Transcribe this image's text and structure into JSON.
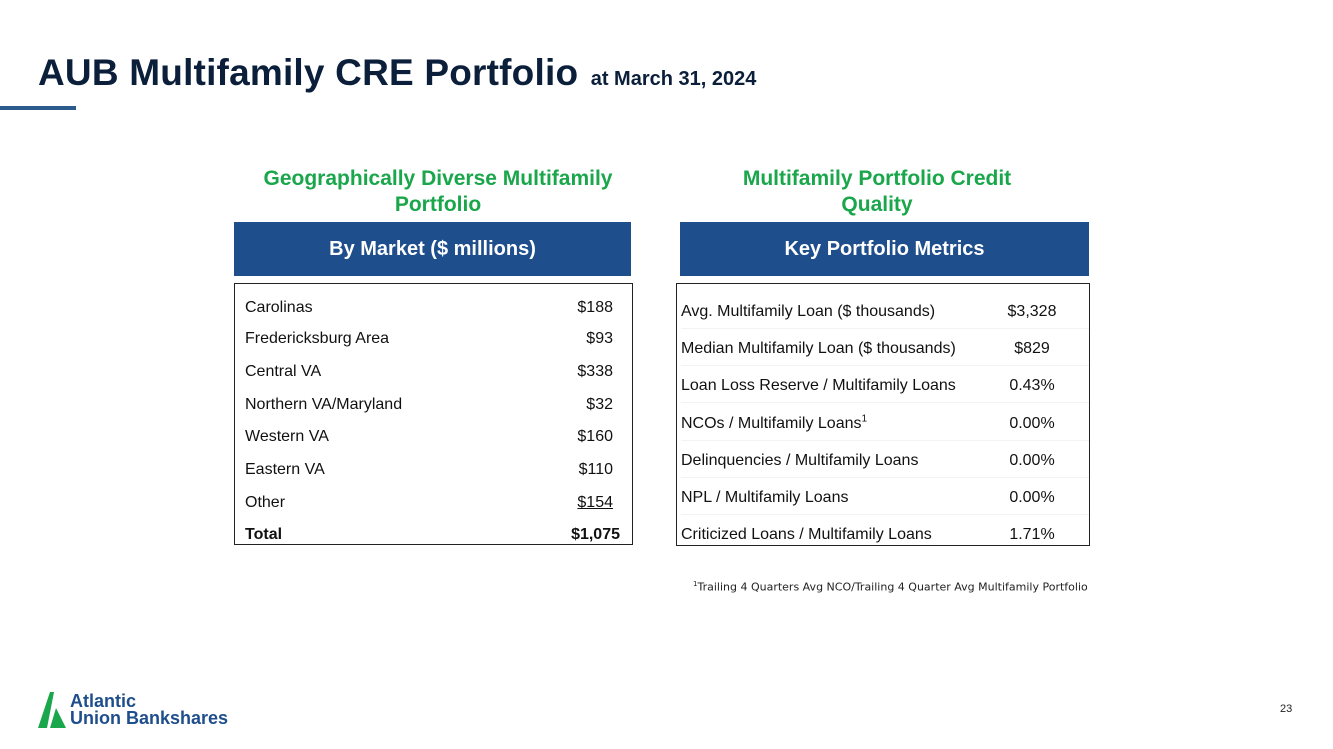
{
  "slide": {
    "title": "AUB Multifamily CRE Portfolio",
    "subtitle": "at March 31, 2024",
    "page_number": "23"
  },
  "left_section": {
    "heading_line1": "Geographically Diverse Multifamily",
    "heading_line2": "Portfolio",
    "table_header": "By Market ($ millions)",
    "rows": [
      {
        "label": "Carolinas",
        "value": "$188"
      },
      {
        "label": "Fredericksburg Area",
        "value": "$93"
      },
      {
        "label": "Central VA",
        "value": "$338"
      },
      {
        "label": "Northern VA/Maryland",
        "value": "$32"
      },
      {
        "label": "Western VA",
        "value": "$160"
      },
      {
        "label": "Eastern VA",
        "value": "$110"
      },
      {
        "label": "Other",
        "value": "$154"
      }
    ],
    "total": {
      "label": "Total",
      "value": "$1,075"
    }
  },
  "right_section": {
    "heading_line1": "Multifamily Portfolio Credit",
    "heading_line2": "Quality",
    "table_header": "Key Portfolio Metrics",
    "rows": [
      {
        "label": "Avg. Multifamily Loan ($ thousands)",
        "value": "$3,328"
      },
      {
        "label": "Median Multifamily Loan ($ thousands)",
        "value": "$829"
      },
      {
        "label": "Loan Loss Reserve / Multifamily Loans",
        "value": "0.43%"
      },
      {
        "label": "NCOs / Multifamily Loans",
        "sup": "1",
        "value": "0.00%"
      },
      {
        "label": "Delinquencies / Multifamily Loans",
        "value": "0.00%"
      },
      {
        "label": "NPL / Multifamily Loans",
        "value": "0.00%"
      },
      {
        "label": "Criticized Loans / Multifamily Loans",
        "value": "1.71%"
      }
    ]
  },
  "footnote": {
    "marker": "1",
    "text": "Trailing 4 Quarters Avg NCO/Trailing 4 Quarter Avg Multifamily Portfolio"
  },
  "logo": {
    "line1": "Atlantic",
    "line2": "Union Bankshares",
    "icon": "aub-logo-mark",
    "colors": {
      "green": "#1aa64a",
      "blue": "#1f4e8c"
    }
  }
}
